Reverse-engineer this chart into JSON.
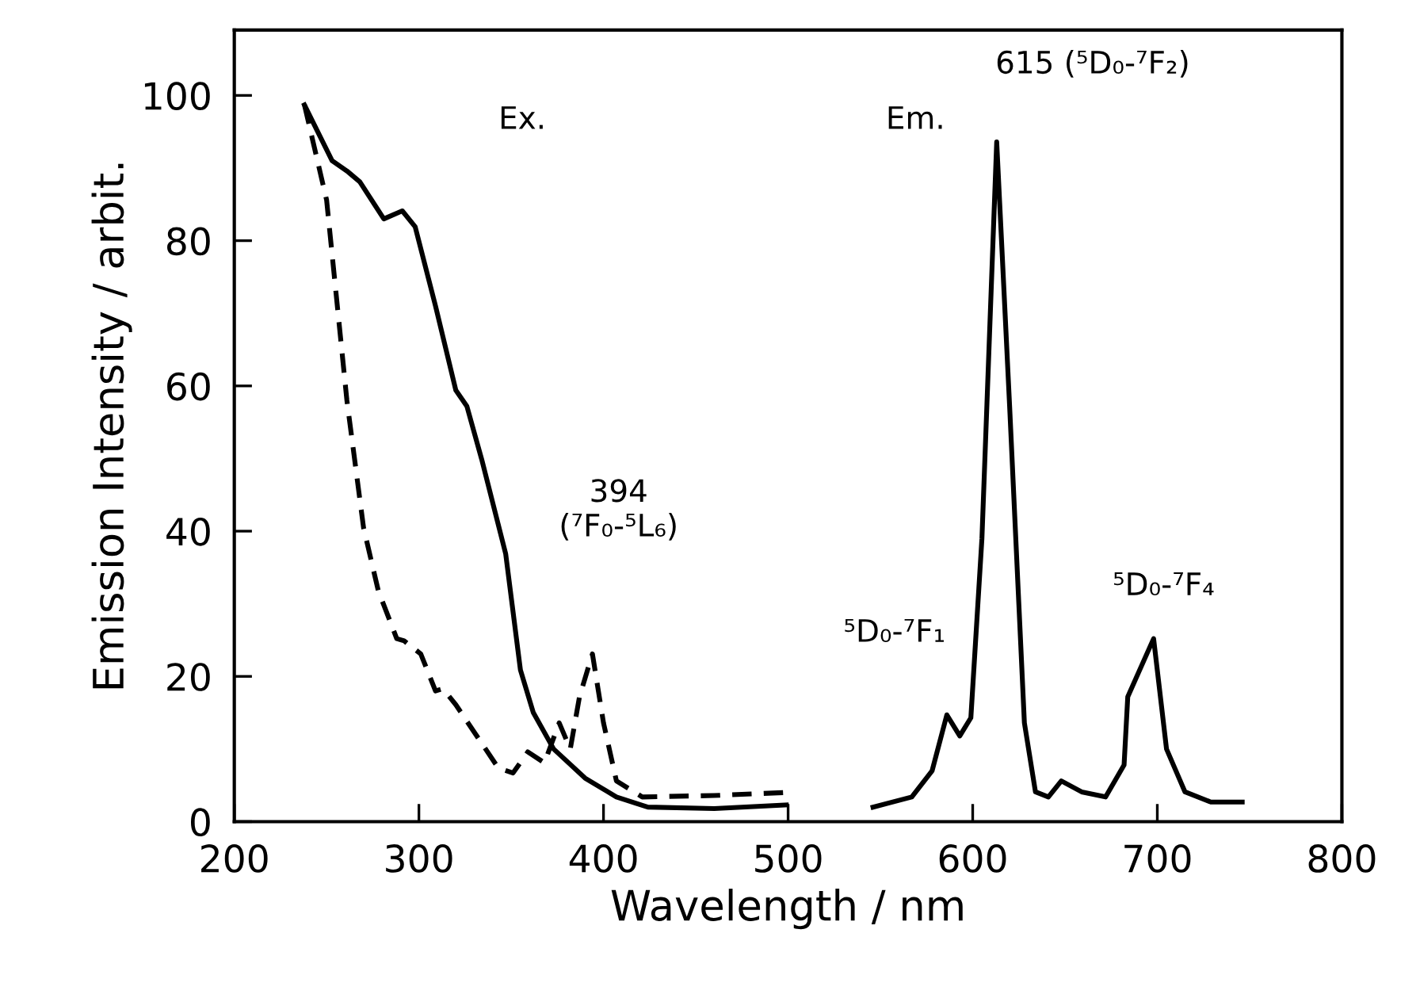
{
  "chart_data": {
    "type": "line",
    "xlabel": "Wavelength / nm",
    "ylabel": "Emission Intensity / arbit.",
    "xlim": [
      200,
      800
    ],
    "ylim": [
      0,
      109
    ],
    "xticks": [
      200,
      300,
      400,
      500,
      600,
      700,
      800
    ],
    "yticks": [
      0,
      20,
      40,
      60,
      80,
      100
    ],
    "grid": false,
    "marker": "none",
    "series": [
      {
        "color": "#000000",
        "line_style": "solid",
        "x": [
          238,
          253,
          261,
          268,
          281,
          291,
          298,
          309,
          320,
          326,
          334,
          347,
          355,
          362,
          373,
          390,
          407,
          424,
          460,
          499
        ],
        "values": [
          98.7,
          91.0,
          89.6,
          88.1,
          83.0,
          84.1,
          81.9,
          71.0,
          59.4,
          57.2,
          49.9,
          36.9,
          20.9,
          15.0,
          10.0,
          6.0,
          3.4,
          2.0,
          1.8,
          2.3
        ]
      },
      {
        "color": "#000000",
        "line_style": "dashed",
        "x": [
          238,
          250,
          261,
          270,
          278,
          288,
          292,
          301,
          309,
          313,
          320,
          343,
          351,
          359,
          368,
          376,
          382,
          387,
          394,
          400,
          407,
          421,
          460,
          498
        ],
        "values": [
          98.7,
          85.6,
          58.0,
          40.5,
          31.8,
          25.2,
          24.9,
          23.1,
          18.0,
          18.3,
          16.1,
          7.4,
          6.7,
          9.6,
          8.1,
          13.6,
          10.0,
          17.2,
          23.1,
          13.6,
          5.6,
          3.4,
          3.6,
          4.0
        ]
      },
      {
        "color": "#000000",
        "line_style": "solid",
        "x": [
          546,
          567,
          578,
          586,
          593,
          599,
          605,
          613,
          620,
          628,
          634,
          641,
          648,
          659,
          672,
          682,
          684,
          698,
          705,
          715,
          729,
          746
        ],
        "values": [
          2.0,
          3.4,
          7.0,
          14.7,
          11.8,
          14.3,
          39.0,
          93.6,
          57.2,
          13.6,
          4.1,
          3.4,
          5.6,
          4.1,
          3.4,
          7.8,
          17.2,
          25.2,
          10.0,
          4.1,
          2.7,
          2.7
        ]
      }
    ],
    "annotations": [
      "Ex.",
      "Em.",
      "394\n(⁷F₀-⁵L₆)",
      "615 (⁵D₀-⁷F₂)",
      "⁵D₀-⁷F₁",
      "⁵D₀-⁷F₄"
    ]
  }
}
